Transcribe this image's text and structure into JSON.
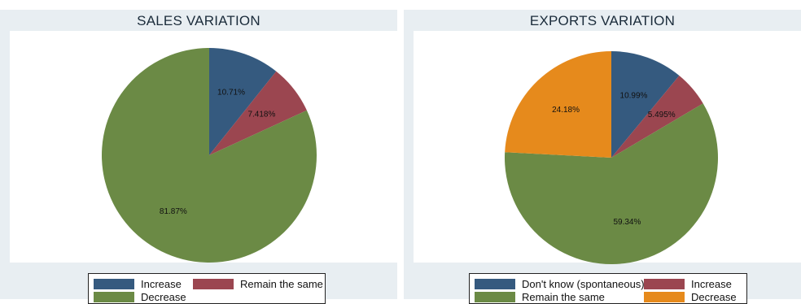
{
  "chart_data": [
    {
      "type": "pie",
      "title": "SALES VARIATION",
      "slices": [
        {
          "label": "Increase",
          "value": 10.71,
          "display": "10.71%",
          "color": "#355a7f"
        },
        {
          "label": "Remain the same",
          "value": 7.418,
          "display": "7.418%",
          "color": "#9b4650"
        },
        {
          "label": "Decrease",
          "value": 81.87,
          "display": "81.87%",
          "color": "#6b8a45"
        }
      ],
      "legend": [
        {
          "label": "Increase",
          "color": "#355a7f"
        },
        {
          "label": "Remain the same",
          "color": "#9b4650"
        },
        {
          "label": "Decrease",
          "color": "#6b8a45"
        }
      ],
      "legend_placement": "bottom"
    },
    {
      "type": "pie",
      "title": "EXPORTS VARIATION",
      "slices": [
        {
          "label": "Don't know (spontaneous)",
          "value": 10.99,
          "display": "10.99%",
          "color": "#355a7f"
        },
        {
          "label": "Increase",
          "value": 5.495,
          "display": "5.495%",
          "color": "#9b4650"
        },
        {
          "label": "Remain the same",
          "value": 59.34,
          "display": "59.34%",
          "color": "#6b8a45"
        },
        {
          "label": "Decrease",
          "value": 24.18,
          "display": "24.18%",
          "color": "#e68a1c"
        }
      ],
      "legend": [
        {
          "label": "Don't know (spontaneous)",
          "color": "#355a7f"
        },
        {
          "label": "Increase",
          "color": "#9b4650"
        },
        {
          "label": "Remain the same",
          "color": "#6b8a45"
        },
        {
          "label": "Decrease",
          "color": "#e68a1c"
        }
      ],
      "legend_placement": "bottom"
    }
  ]
}
